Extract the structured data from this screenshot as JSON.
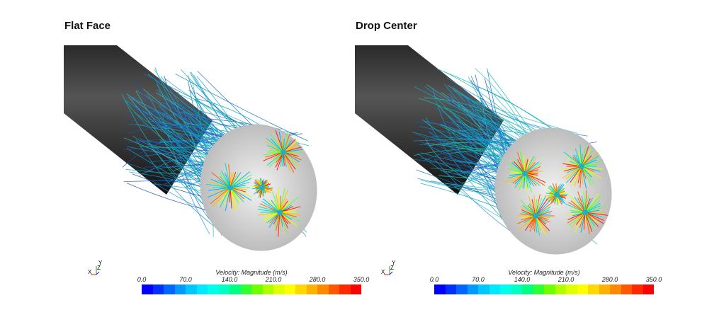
{
  "panels": [
    {
      "title": "Flat Face"
    },
    {
      "title": "Drop Center"
    }
  ],
  "legend": {
    "title": "Velocity: Magnitude (m/s)",
    "ticks": [
      "0.0",
      "70.0",
      "140.0",
      "210.0",
      "280.0",
      "350.0"
    ],
    "colors": [
      "#0000ff",
      "#0030ff",
      "#0066ff",
      "#0099ff",
      "#00c8ff",
      "#00e8ff",
      "#00ffe8",
      "#00ffc0",
      "#00ff80",
      "#30ff30",
      "#70ff00",
      "#b0ff00",
      "#e0ff00",
      "#ffff00",
      "#ffd800",
      "#ffb000",
      "#ff8800",
      "#ff5800",
      "#ff2800",
      "#ff0000"
    ]
  },
  "triad": {
    "x": "X",
    "y": "Y",
    "z": "Z"
  }
}
